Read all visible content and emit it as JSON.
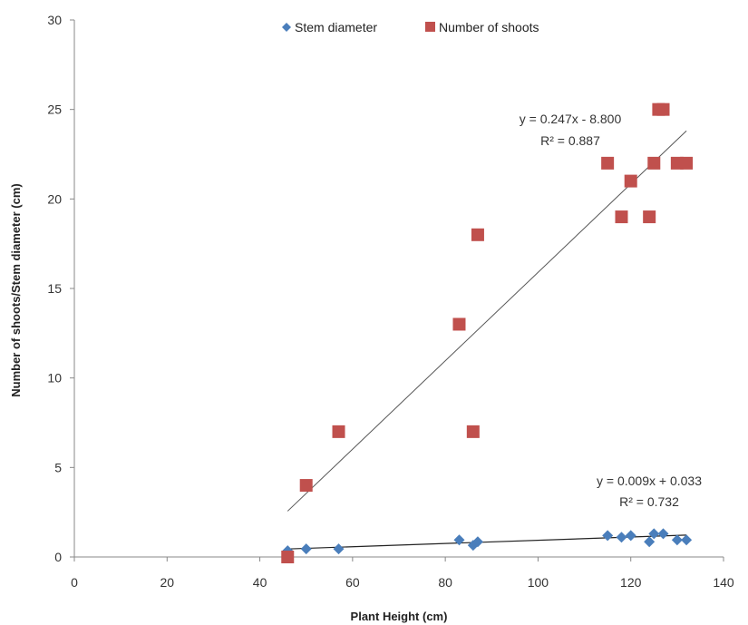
{
  "chart_data": {
    "type": "scatter",
    "title": "",
    "xlabel": "Plant Height (cm)",
    "ylabel": "Number of shoots/Stem diameter (cm)",
    "xlim": [
      0,
      140
    ],
    "ylim": [
      0,
      30
    ],
    "xticks": [
      0,
      20,
      40,
      60,
      80,
      100,
      120,
      140
    ],
    "yticks": [
      0,
      5,
      10,
      15,
      20,
      25,
      30
    ],
    "grid": false,
    "legend_position": "top-center",
    "series": [
      {
        "name": "Stem diameter",
        "marker": "diamond",
        "color": "#4a7ebb",
        "x": [
          46,
          50,
          57,
          83,
          86,
          87,
          115,
          118,
          120,
          124,
          125,
          127,
          130,
          132
        ],
        "y": [
          0.35,
          0.45,
          0.45,
          0.95,
          0.65,
          0.85,
          1.2,
          1.1,
          1.2,
          0.85,
          1.3,
          1.3,
          0.95,
          0.95
        ],
        "trendline": {
          "slope": 0.009,
          "intercept": 0.033,
          "x_range": [
            46,
            132
          ],
          "equation": "y = 0.009x + 0.033",
          "r2": "R² = 0.732"
        }
      },
      {
        "name": "Number of shoots",
        "marker": "square",
        "color": "#c0504d",
        "x": [
          46,
          50,
          57,
          83,
          86,
          87,
          115,
          118,
          120,
          124,
          125,
          126,
          127,
          130,
          132
        ],
        "y": [
          0,
          4,
          7,
          13,
          7,
          18,
          22,
          19,
          21,
          19,
          22,
          25,
          25,
          22,
          22
        ],
        "trendline": {
          "slope": 0.247,
          "intercept": -8.8,
          "x_range": [
            46,
            132
          ],
          "equation": "y = 0.247x - 8.800",
          "r2": "R² = 0.887"
        }
      }
    ]
  }
}
